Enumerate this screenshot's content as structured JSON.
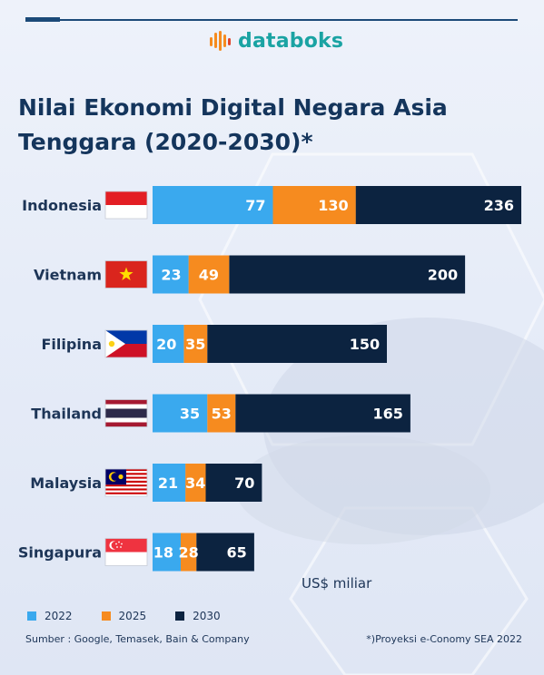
{
  "brand": {
    "name": "databoks"
  },
  "title": "Nilai Ekonomi Digital Negara Asia Tenggara (2020-2030)*",
  "unit_label": "US$ miliar",
  "source": "Sumber : Google, Temasek, Bain & Company",
  "note": "*)Proyeksi e-Conomy SEA 2022",
  "colors": {
    "y2022": "#3aa9ee",
    "y2025": "#f68b1f",
    "y2030": "#0c2340"
  },
  "chart_data": {
    "type": "bar",
    "orientation": "horizontal",
    "stacking": "overlay",
    "title": "Nilai Ekonomi Digital Negara Asia Tenggara (2020-2030)*",
    "xlabel": "US$ miliar",
    "categories": [
      "Indonesia",
      "Vietnam",
      "Filipina",
      "Thailand",
      "Malaysia",
      "Singapura"
    ],
    "series": [
      {
        "name": "2022",
        "values": [
          77,
          23,
          20,
          35,
          21,
          18
        ]
      },
      {
        "name": "2025",
        "values": [
          130,
          49,
          35,
          53,
          34,
          28
        ]
      },
      {
        "name": "2030",
        "values": [
          236,
          200,
          150,
          165,
          70,
          65
        ]
      }
    ],
    "legend_position": "bottom-left",
    "grid": false
  }
}
